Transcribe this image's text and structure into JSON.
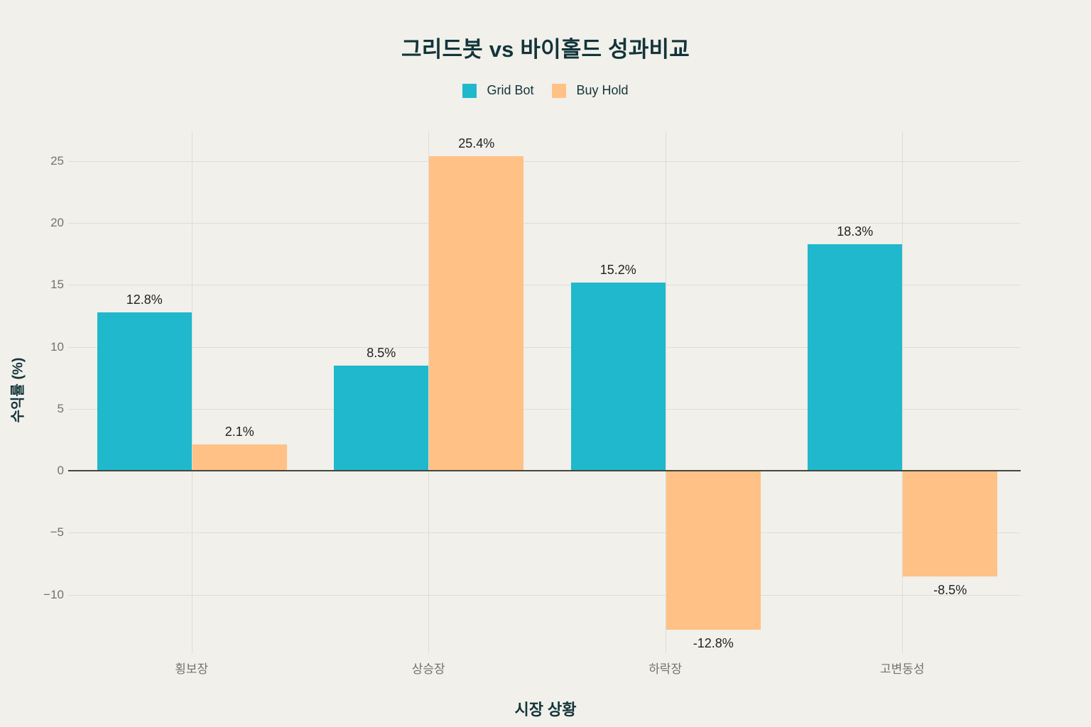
{
  "chart_data": {
    "type": "bar",
    "title": "그리드봇 vs 바이홀드 성과비교",
    "xlabel": "시장 상황",
    "ylabel": "수익률 (%)",
    "categories": [
      "횡보장",
      "상승장",
      "하락장",
      "고변동성"
    ],
    "series": [
      {
        "name": "Grid Bot",
        "color": "#20B8CD",
        "values": [
          12.8,
          8.5,
          15.2,
          18.3
        ]
      },
      {
        "name": "Buy Hold",
        "color": "#FFC185",
        "values": [
          2.1,
          25.4,
          -12.8,
          -8.5
        ]
      }
    ],
    "value_labels": [
      [
        "12.8%",
        "8.5%",
        "15.2%",
        "18.3%"
      ],
      [
        "2.1%",
        "25.4%",
        "-12.8%",
        "-8.5%"
      ]
    ],
    "yticks": [
      25,
      20,
      15,
      10,
      5,
      0,
      -5,
      -10
    ],
    "ytick_labels": [
      "25",
      "20",
      "15",
      "10",
      "5",
      "0",
      "−5",
      "−10"
    ],
    "ylim": [
      -14.7,
      27.4
    ],
    "grid": true,
    "legend_position": "top-center"
  },
  "colors": {
    "background": "#F1F0EA",
    "grid_bot": "#20B8CD",
    "buy_hold": "#FFC185",
    "title_text": "#13343B",
    "tick_text": "#73736B",
    "gridline": "#DEDDD5",
    "zero_line": "#45453F",
    "value_label_text": "#1F2121"
  }
}
